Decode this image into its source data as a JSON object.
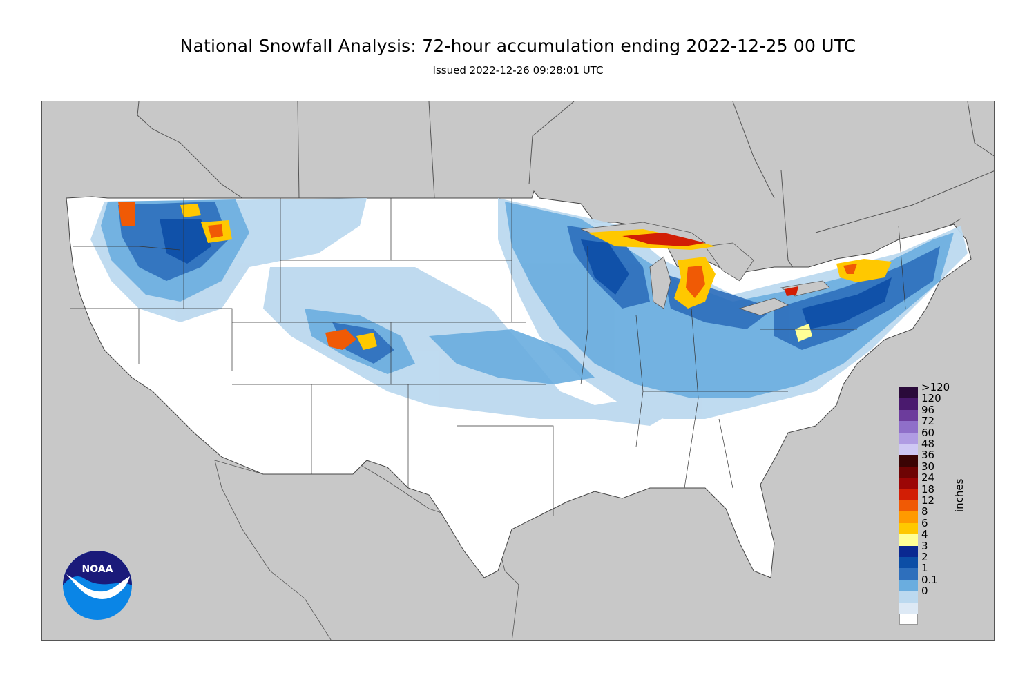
{
  "header": {
    "title": "National Snowfall Analysis: 72-hour accumulation ending 2022-12-25 00 UTC",
    "issued": "Issued 2022-12-26 09:28:01 UTC"
  },
  "logo": {
    "text": "NOAA"
  },
  "legend": {
    "units": "inches",
    "bins": [
      {
        "label": ">120",
        "color": "#2a0a3a"
      },
      {
        "label": "120",
        "color": "#4a1a6e"
      },
      {
        "label": "96",
        "color": "#6c3c9c"
      },
      {
        "label": "72",
        "color": "#8f6fc9"
      },
      {
        "label": "60",
        "color": "#b09ce3"
      },
      {
        "label": "48",
        "color": "#cfc8f4"
      },
      {
        "label": "36",
        "color": "#3a0404"
      },
      {
        "label": "30",
        "color": "#6e0404"
      },
      {
        "label": "24",
        "color": "#9c0606"
      },
      {
        "label": "18",
        "color": "#d21e05"
      },
      {
        "label": "12",
        "color": "#f05a05"
      },
      {
        "label": "8",
        "color": "#ff9a00"
      },
      {
        "label": "6",
        "color": "#ffc800"
      },
      {
        "label": "4",
        "color": "#ffff96"
      },
      {
        "label": "3",
        "color": "#0a2891"
      },
      {
        "label": "2",
        "color": "#0c4ea6"
      },
      {
        "label": "1",
        "color": "#2e6fbc"
      },
      {
        "label": "0.1",
        "color": "#6aaddf"
      },
      {
        "label": "0",
        "color": "#bcd9ef"
      },
      {
        "label": "",
        "color": "#dde9f5"
      },
      {
        "label": "",
        "color": "#ffffff"
      }
    ]
  },
  "colors": {
    "background": "#c8c8c8",
    "land": "#ffffff",
    "boundary": "#444444"
  }
}
